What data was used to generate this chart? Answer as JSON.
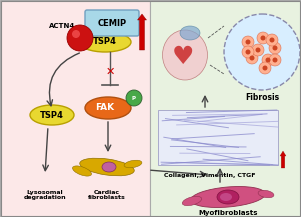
{
  "left_bg": "#fce8e8",
  "right_bg": "#e8f2e0",
  "cemip_box_color": "#a8d8e8",
  "cemip_text": "CEMIP",
  "tsp4_top_color": "#e8d830",
  "tsp4_top_text": "TSP4",
  "actn4_text": "ACTN4",
  "actn4_ball_color": "#cc1111",
  "fak_color": "#e86818",
  "fak_text": "FAK",
  "p_color": "#48a848",
  "p_text": "P",
  "tsp4_low_color": "#e8d830",
  "tsp4_low_text": "TSP4",
  "lysosomal_text": "Lysosomal\ndegradation",
  "cardiac_text": "Cardiac\nfibroblasts",
  "fibrosis_text": "Fibrosis",
  "collagen_text": "CollagenI, Vimentin, CTGF",
  "myofib_text": "Myofibroblasts",
  "red_arrow_color": "#cc0000",
  "arrow_color": "#444444",
  "fiber_color": "#8888cc",
  "fiber_bg": "#e8ecf8"
}
